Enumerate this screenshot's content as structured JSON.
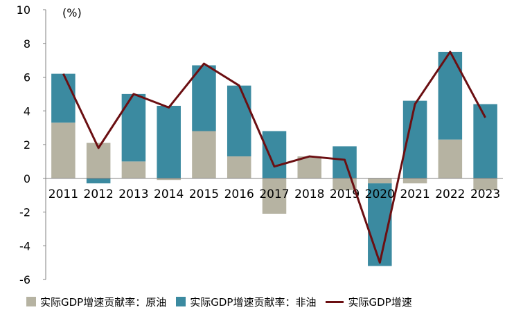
{
  "chart_data": {
    "type": "bar",
    "unit_label": "(%)",
    "categories": [
      "2011",
      "2012",
      "2013",
      "2014",
      "2015",
      "2016",
      "2017",
      "2018",
      "2019",
      "2020",
      "2021",
      "2022",
      "2023"
    ],
    "series": [
      {
        "name": "实际GDP增速贡献率：原油",
        "kind": "stacked-bar",
        "color": "#b6b3a2",
        "values": [
          3.3,
          2.1,
          1.0,
          -0.1,
          2.8,
          1.3,
          -2.1,
          1.3,
          -0.7,
          -0.3,
          -0.3,
          2.3,
          -0.7
        ]
      },
      {
        "name": "实际GDP增速贡献率：非油",
        "kind": "stacked-bar",
        "color": "#3b8aa0",
        "values": [
          2.9,
          -0.3,
          4.0,
          4.3,
          3.9,
          4.2,
          2.8,
          0.0,
          1.9,
          -4.9,
          4.6,
          5.2,
          4.4
        ]
      },
      {
        "name": "实际GDP增速",
        "kind": "line",
        "color": "#6b0f12",
        "values": [
          6.2,
          1.8,
          5.0,
          4.2,
          6.8,
          5.5,
          0.7,
          1.3,
          1.1,
          -5.0,
          4.4,
          7.5,
          3.6
        ]
      }
    ],
    "ylim": [
      -6,
      10
    ],
    "yticks": [
      -6,
      -4,
      -2,
      0,
      2,
      4,
      6,
      8,
      10
    ],
    "grid": false,
    "legend_position": "bottom"
  }
}
